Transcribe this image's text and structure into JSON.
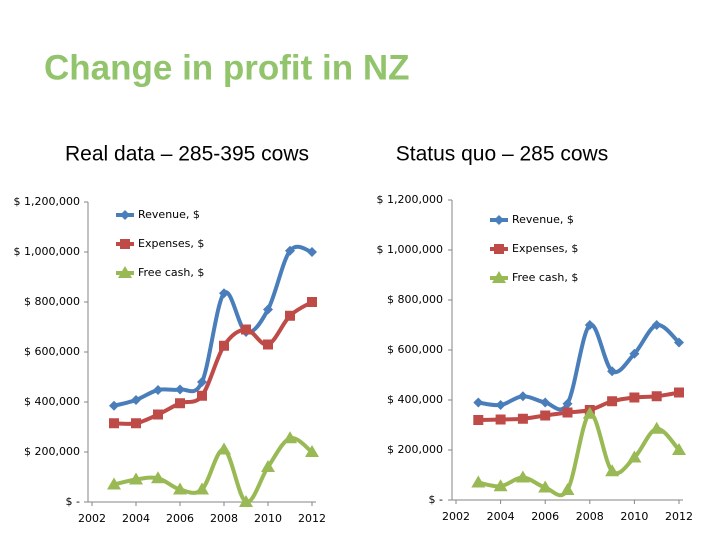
{
  "slide": {
    "title": "Change in profit in NZ"
  },
  "chart_data": [
    {
      "type": "line",
      "title": "Real data – 285-395 cows",
      "x": [
        2003,
        2004,
        2005,
        2006,
        2007,
        2008,
        2009,
        2010,
        2011,
        2012
      ],
      "xlim": [
        2002,
        2012
      ],
      "xticks": [
        2002,
        2004,
        2006,
        2008,
        2010,
        2012
      ],
      "ylim": [
        0,
        1200000
      ],
      "yticks": [
        {
          "value": 0,
          "label": "$ -"
        },
        {
          "value": 200000,
          "label": "$ 200,000"
        },
        {
          "value": 400000,
          "label": "$ 400,000"
        },
        {
          "value": 600000,
          "label": "$ 600,000"
        },
        {
          "value": 800000,
          "label": "$ 800,000"
        },
        {
          "value": 1000000,
          "label": "$ 1,000,000"
        },
        {
          "value": 1200000,
          "label": "$ 1,200,000"
        }
      ],
      "smooth": true,
      "legend": "top",
      "series": [
        {
          "name": "Revenue, $",
          "color": "#4a7ebb",
          "marker": "diamond",
          "values": [
            385000,
            408000,
            448000,
            450000,
            480000,
            835000,
            680000,
            770000,
            1005000,
            1000000
          ]
        },
        {
          "name": "Expenses, $",
          "color": "#be4b48",
          "marker": "square",
          "values": [
            315000,
            315000,
            350000,
            395000,
            425000,
            625000,
            690000,
            630000,
            745000,
            800000
          ]
        },
        {
          "name": "Free cash, $",
          "color": "#98b954",
          "marker": "triangle",
          "values": [
            70000,
            90000,
            95000,
            50000,
            50000,
            210000,
            0,
            140000,
            255000,
            200000
          ]
        }
      ]
    },
    {
      "type": "line",
      "title": "Status quo – 285 cows",
      "x": [
        2003,
        2004,
        2005,
        2006,
        2007,
        2008,
        2009,
        2010,
        2011,
        2012
      ],
      "xlim": [
        2002,
        2012
      ],
      "xticks": [
        2002,
        2004,
        2006,
        2008,
        2010,
        2012
      ],
      "ylim": [
        0,
        1200000
      ],
      "yticks": [
        {
          "value": 0,
          "label": "$ -"
        },
        {
          "value": 200000,
          "label": "$ 200,000"
        },
        {
          "value": 400000,
          "label": "$ 400,000"
        },
        {
          "value": 600000,
          "label": "$ 600,000"
        },
        {
          "value": 800000,
          "label": "$ 800,000"
        },
        {
          "value": 1000000,
          "label": "$ 1,000,000"
        },
        {
          "value": 1200000,
          "label": "$ 1,200,000"
        }
      ],
      "smooth": true,
      "legend": "top",
      "series": [
        {
          "name": "Revenue, $",
          "color": "#4a7ebb",
          "marker": "diamond",
          "values": [
            390000,
            380000,
            415000,
            390000,
            385000,
            700000,
            515000,
            585000,
            700000,
            630000
          ]
        },
        {
          "name": "Expenses, $",
          "color": "#be4b48",
          "marker": "square",
          "values": [
            320000,
            322000,
            325000,
            338000,
            350000,
            360000,
            395000,
            410000,
            415000,
            430000
          ]
        },
        {
          "name": "Free cash, $",
          "color": "#98b954",
          "marker": "triangle",
          "values": [
            70000,
            55000,
            90000,
            50000,
            40000,
            345000,
            115000,
            170000,
            285000,
            200000
          ]
        }
      ]
    }
  ]
}
